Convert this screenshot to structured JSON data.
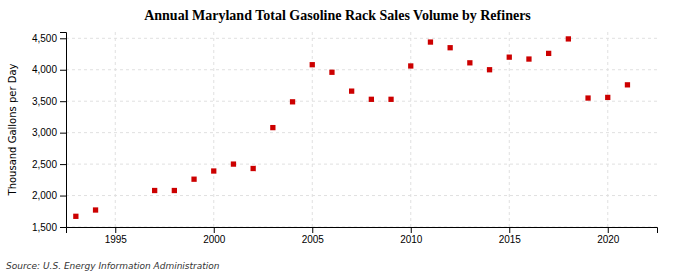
{
  "chart_data": {
    "type": "scatter",
    "title": "Annual Maryland Total Gasoline Rack Sales Volume by Refiners",
    "ylabel": "Thousand Gallons per Day",
    "source": "Source: U.S. Energy Information Administration",
    "x": [
      1993,
      1994,
      1997,
      1998,
      1999,
      2000,
      2001,
      2002,
      2003,
      2004,
      2005,
      2006,
      2007,
      2008,
      2009,
      2010,
      2011,
      2012,
      2013,
      2014,
      2015,
      2016,
      2017,
      2018,
      2019,
      2020,
      2021
    ],
    "values": [
      1670,
      1770,
      2080,
      2080,
      2260,
      2390,
      2500,
      2430,
      3080,
      3490,
      4080,
      3960,
      3660,
      3530,
      3530,
      4060,
      4440,
      4350,
      4110,
      4000,
      4200,
      4170,
      4260,
      4490,
      3550,
      3560,
      3760
    ],
    "color": "#cc0000",
    "marker": "square",
    "xlim": [
      1992.5,
      2022.5
    ],
    "ylim": [
      1500,
      4600
    ],
    "xticks": [
      1995,
      2000,
      2005,
      2010,
      2015,
      2020
    ],
    "yticks": [
      {
        "value": 1500,
        "label": "1,500"
      },
      {
        "value": 2000,
        "label": "2,000"
      },
      {
        "value": 2500,
        "label": "2,500"
      },
      {
        "value": 3000,
        "label": "3,000"
      },
      {
        "value": 3500,
        "label": "3,500"
      },
      {
        "value": 4000,
        "label": "4,000"
      },
      {
        "value": 4500,
        "label": "4,500"
      }
    ],
    "grid": true
  }
}
